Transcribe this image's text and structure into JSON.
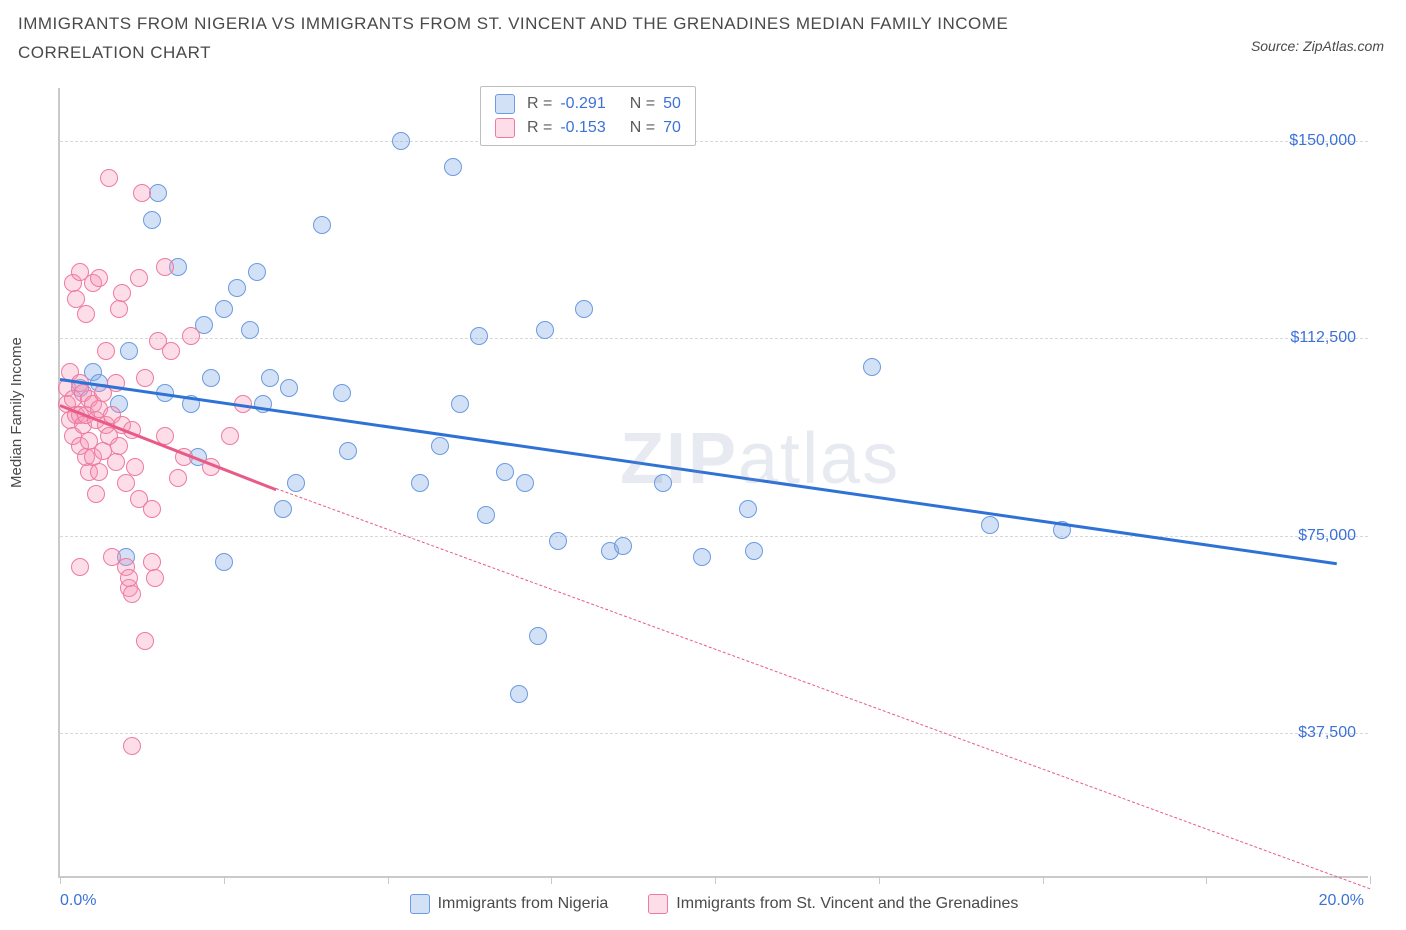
{
  "title": "IMMIGRANTS FROM NIGERIA VS IMMIGRANTS FROM ST. VINCENT AND THE GRENADINES MEDIAN FAMILY INCOME CORRELATION CHART",
  "source": "Source: ZipAtlas.com",
  "y_axis_label": "Median Family Income",
  "watermark_a": "ZIP",
  "watermark_b": "atlas",
  "colors": {
    "blue_stroke": "#6b9be0",
    "blue_fill": "rgba(125,170,230,0.35)",
    "blue_line": "#2f72d6",
    "pink_stroke": "#ee7aa0",
    "pink_fill": "rgba(245,150,185,0.32)",
    "pink_line": "#e85b87",
    "grid": "#d8d8d8",
    "axis": "#c9c9c9",
    "tick_text": "#3b72d9",
    "text": "#4a4a4a"
  },
  "chart": {
    "type": "scatter",
    "xlim": [
      0,
      20
    ],
    "ylim": [
      10000,
      160000
    ],
    "x_ticks": [
      0,
      2.5,
      5,
      7.5,
      10,
      12.5,
      15,
      17.5,
      20
    ],
    "x_tick_labels": {
      "0": "0.0%",
      "20": "20.0%"
    },
    "y_ticks": [
      37500,
      75000,
      112500,
      150000
    ],
    "y_tick_labels": [
      "$37,500",
      "$75,000",
      "$112,500",
      "$150,000"
    ],
    "marker_radius": 9,
    "marker_stroke_width": 1.5,
    "series": [
      {
        "key": "nigeria",
        "label": "Immigrants from Nigeria",
        "color_key": "blue",
        "R": "-0.291",
        "N": "50",
        "trend": {
          "x1": 0,
          "y1": 105000,
          "x2": 19.5,
          "y2": 70000,
          "width": 3,
          "dashed": false
        },
        "points": [
          [
            0.3,
            103000
          ],
          [
            0.5,
            106000
          ],
          [
            0.6,
            104000
          ],
          [
            0.9,
            100000
          ],
          [
            1.0,
            71000
          ],
          [
            1.05,
            110000
          ],
          [
            1.4,
            135000
          ],
          [
            1.5,
            140000
          ],
          [
            1.6,
            102000
          ],
          [
            1.8,
            126000
          ],
          [
            2.0,
            100000
          ],
          [
            2.1,
            90000
          ],
          [
            2.2,
            115000
          ],
          [
            2.3,
            105000
          ],
          [
            2.5,
            70000
          ],
          [
            2.5,
            118000
          ],
          [
            2.7,
            122000
          ],
          [
            2.9,
            114000
          ],
          [
            3.0,
            125000
          ],
          [
            3.1,
            100000
          ],
          [
            3.2,
            105000
          ],
          [
            3.4,
            80000
          ],
          [
            3.5,
            103000
          ],
          [
            3.6,
            85000
          ],
          [
            4.0,
            134000
          ],
          [
            4.3,
            102000
          ],
          [
            4.4,
            91000
          ],
          [
            5.2,
            150000
          ],
          [
            5.5,
            85000
          ],
          [
            5.8,
            92000
          ],
          [
            6.0,
            145000
          ],
          [
            6.1,
            100000
          ],
          [
            6.4,
            113000
          ],
          [
            6.5,
            79000
          ],
          [
            6.8,
            87000
          ],
          [
            7.0,
            45000
          ],
          [
            7.1,
            85000
          ],
          [
            7.3,
            56000
          ],
          [
            7.4,
            114000
          ],
          [
            7.6,
            74000
          ],
          [
            8.0,
            118000
          ],
          [
            8.4,
            72000
          ],
          [
            8.6,
            73000
          ],
          [
            9.2,
            85000
          ],
          [
            9.8,
            71000
          ],
          [
            10.5,
            80000
          ],
          [
            10.6,
            72000
          ],
          [
            12.4,
            107000
          ],
          [
            14.2,
            77000
          ],
          [
            15.3,
            76000
          ]
        ]
      },
      {
        "key": "svg",
        "label": "Immigrants from St. Vincent and the Grenadines",
        "color_key": "pink",
        "R": "-0.153",
        "N": "70",
        "trend_solid": {
          "x1": 0,
          "y1": 100000,
          "x2": 3.3,
          "y2": 84000,
          "width": 3
        },
        "trend_dashed": {
          "x1": 3.3,
          "y1": 84000,
          "x2": 20,
          "y2": 8000,
          "width": 1
        },
        "points": [
          [
            0.1,
            103000
          ],
          [
            0.1,
            100000
          ],
          [
            0.15,
            97000
          ],
          [
            0.15,
            106000
          ],
          [
            0.2,
            101000
          ],
          [
            0.2,
            94000
          ],
          [
            0.2,
            123000
          ],
          [
            0.25,
            98000
          ],
          [
            0.25,
            120000
          ],
          [
            0.3,
            104000
          ],
          [
            0.3,
            98000
          ],
          [
            0.3,
            92000
          ],
          [
            0.3,
            125000
          ],
          [
            0.3,
            69000
          ],
          [
            0.35,
            96000
          ],
          [
            0.35,
            102000
          ],
          [
            0.4,
            98000
          ],
          [
            0.4,
            90000
          ],
          [
            0.4,
            117000
          ],
          [
            0.45,
            101000
          ],
          [
            0.45,
            93000
          ],
          [
            0.45,
            87000
          ],
          [
            0.5,
            100000
          ],
          [
            0.5,
            90000
          ],
          [
            0.5,
            123000
          ],
          [
            0.55,
            97000
          ],
          [
            0.55,
            83000
          ],
          [
            0.6,
            124000
          ],
          [
            0.6,
            99000
          ],
          [
            0.6,
            87000
          ],
          [
            0.65,
            102000
          ],
          [
            0.65,
            91000
          ],
          [
            0.7,
            96000
          ],
          [
            0.7,
            110000
          ],
          [
            0.75,
            143000
          ],
          [
            0.75,
            94000
          ],
          [
            0.8,
            98000
          ],
          [
            0.8,
            71000
          ],
          [
            0.85,
            104000
          ],
          [
            0.85,
            89000
          ],
          [
            0.9,
            118000
          ],
          [
            0.9,
            92000
          ],
          [
            0.95,
            121000
          ],
          [
            0.95,
            96000
          ],
          [
            1.0,
            69000
          ],
          [
            1.0,
            85000
          ],
          [
            1.05,
            65000
          ],
          [
            1.05,
            67000
          ],
          [
            1.1,
            64000
          ],
          [
            1.1,
            95000
          ],
          [
            1.15,
            88000
          ],
          [
            1.2,
            124000
          ],
          [
            1.2,
            82000
          ],
          [
            1.25,
            140000
          ],
          [
            1.3,
            55000
          ],
          [
            1.3,
            105000
          ],
          [
            1.4,
            70000
          ],
          [
            1.4,
            80000
          ],
          [
            1.45,
            67000
          ],
          [
            1.5,
            112000
          ],
          [
            1.6,
            126000
          ],
          [
            1.6,
            94000
          ],
          [
            1.7,
            110000
          ],
          [
            1.8,
            86000
          ],
          [
            1.9,
            90000
          ],
          [
            2.0,
            113000
          ],
          [
            2.3,
            88000
          ],
          [
            2.6,
            94000
          ],
          [
            2.8,
            100000
          ],
          [
            1.1,
            35000
          ]
        ]
      }
    ]
  },
  "legend_top": {
    "r_label": "R =",
    "n_label": "N ="
  }
}
